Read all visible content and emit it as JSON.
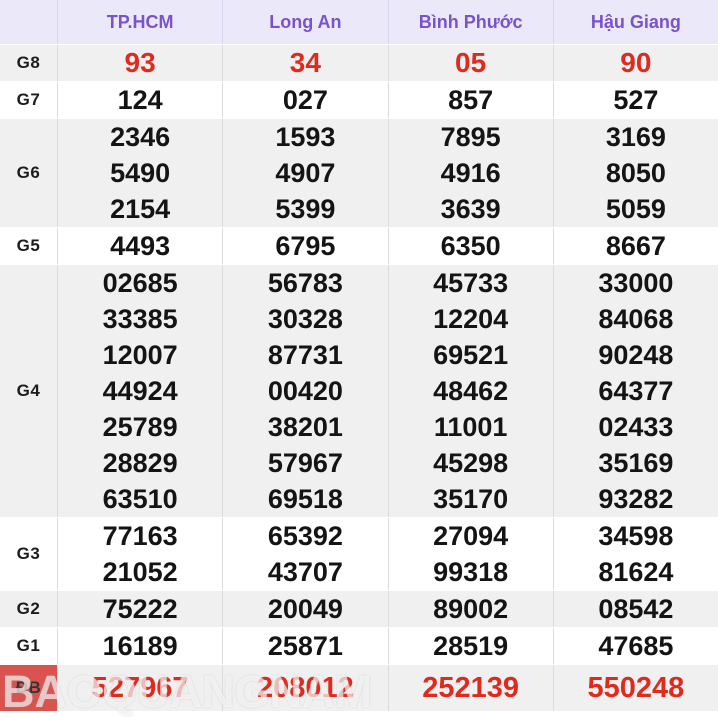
{
  "table": {
    "columns": [
      "TP.HCM",
      "Long An",
      "Bình Phước",
      "Hậu Giang"
    ],
    "rows": [
      {
        "label": "G8",
        "highlight": true,
        "cells": [
          [
            "93"
          ],
          [
            "34"
          ],
          [
            "05"
          ],
          [
            "90"
          ]
        ]
      },
      {
        "label": "G7",
        "cells": [
          [
            "124"
          ],
          [
            "027"
          ],
          [
            "857"
          ],
          [
            "527"
          ]
        ]
      },
      {
        "label": "G6",
        "cells": [
          [
            "2346",
            "5490",
            "2154"
          ],
          [
            "1593",
            "4907",
            "5399"
          ],
          [
            "7895",
            "4916",
            "3639"
          ],
          [
            "3169",
            "8050",
            "5059"
          ]
        ]
      },
      {
        "label": "G5",
        "cells": [
          [
            "4493"
          ],
          [
            "6795"
          ],
          [
            "6350"
          ],
          [
            "8667"
          ]
        ]
      },
      {
        "label": "G4",
        "cells": [
          [
            "02685",
            "33385",
            "12007",
            "44924",
            "25789",
            "28829",
            "63510"
          ],
          [
            "56783",
            "30328",
            "87731",
            "00420",
            "38201",
            "57967",
            "69518"
          ],
          [
            "45733",
            "12204",
            "69521",
            "48462",
            "11001",
            "45298",
            "35170"
          ],
          [
            "33000",
            "84068",
            "90248",
            "64377",
            "02433",
            "35169",
            "93282"
          ]
        ]
      },
      {
        "label": "G3",
        "cells": [
          [
            "77163",
            "21052"
          ],
          [
            "65392",
            "43707"
          ],
          [
            "27094",
            "99318"
          ],
          [
            "34598",
            "81624"
          ]
        ]
      },
      {
        "label": "G2",
        "cells": [
          [
            "75222"
          ],
          [
            "20049"
          ],
          [
            "89002"
          ],
          [
            "08542"
          ]
        ]
      },
      {
        "label": "G1",
        "cells": [
          [
            "16189"
          ],
          [
            "25871"
          ],
          [
            "28519"
          ],
          [
            "47685"
          ]
        ]
      },
      {
        "label": "ĐB",
        "highlight": true,
        "special": true,
        "cells": [
          [
            "527967"
          ],
          [
            "208012"
          ],
          [
            "252139"
          ],
          [
            "550248"
          ]
        ]
      }
    ]
  },
  "watermark": "BAOQUANGNAM",
  "colors": {
    "header_text": "#7a52c9",
    "header_bg": "#ebe8fa",
    "row_alt_bg": "#f0f0f0",
    "row_bg": "#ffffff",
    "red_value": "#e02a1e",
    "special_label_bg": "#d9534f",
    "number_text": "#141414"
  }
}
